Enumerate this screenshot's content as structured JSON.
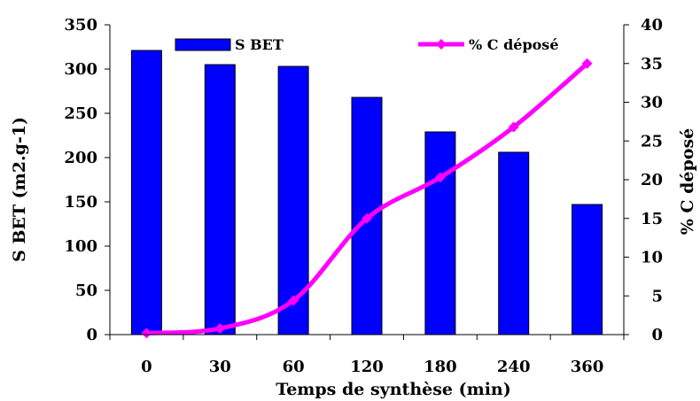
{
  "chart_data": {
    "type": "bar",
    "categories": [
      "0",
      "30",
      "60",
      "120",
      "180",
      "240",
      "360"
    ],
    "series": [
      {
        "name": "S BET",
        "type": "bar",
        "axis": "left",
        "color": "#0000ff",
        "values": [
          321,
          305,
          303,
          268,
          229,
          206,
          147
        ]
      },
      {
        "name": "% C déposé",
        "type": "line",
        "axis": "right",
        "color": "#ff00ff",
        "values": [
          0.2,
          0.8,
          4.4,
          15.0,
          20.3,
          26.8,
          35.0
        ]
      }
    ],
    "xlabel": "Temps de synthèse (min)",
    "ylabel": "S BET (m2.g-1)",
    "y2label": "% C déposé",
    "ylim": [
      0,
      350
    ],
    "y2lim": [
      0,
      40
    ],
    "yticks": [
      0,
      50,
      100,
      150,
      200,
      250,
      300,
      350
    ],
    "y2ticks": [
      0,
      5,
      10,
      15,
      20,
      25,
      30,
      35,
      40
    ],
    "grid": false,
    "legend_position": "top"
  }
}
